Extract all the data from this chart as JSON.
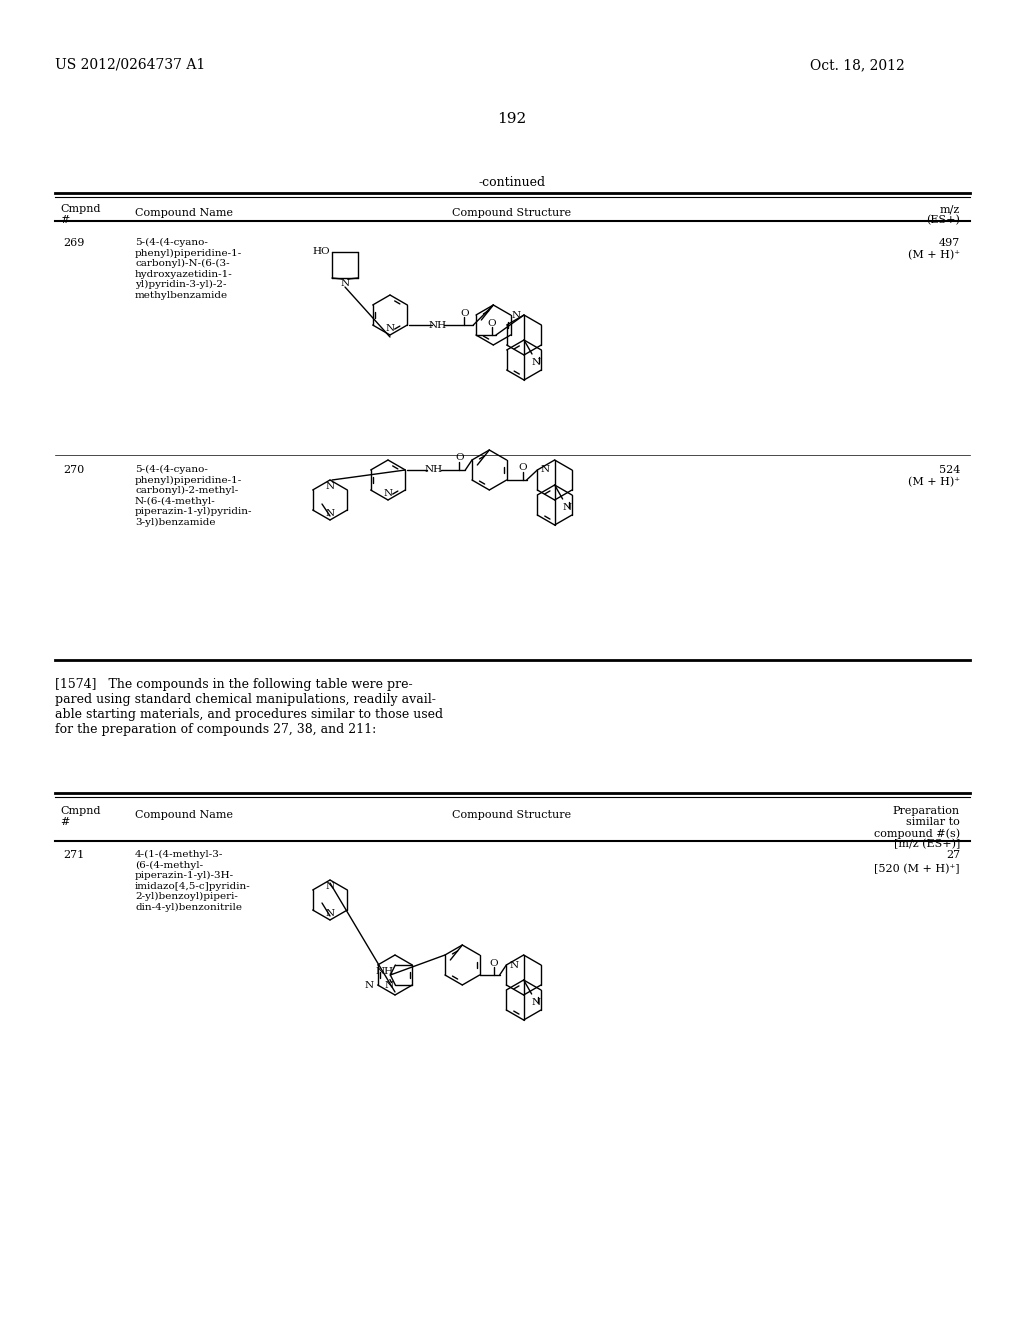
{
  "page_number": "192",
  "patent_number": "US 2012/0264737 A1",
  "patent_date": "Oct. 18, 2012",
  "continued_label": "-continued",
  "row269_cmpnd": "269",
  "row269_name": "5-(4-(4-cyano-\nphenyl)piperidine-1-\ncarbonyl)-N-(6-(3-\nhydroxyazetidin-1-\nyl)pyridin-3-yl)-2-\nmethylbenzamide",
  "row269_mz": "497",
  "row269_mz2": "(M + H)⁺",
  "row270_cmpnd": "270",
  "row270_name": "5-(4-(4-cyano-\nphenyl)piperidine-1-\ncarbonyl)-2-methyl-\nN-(6-(4-methyl-\npiperazin-1-yl)pyridin-\n3-yl)benzamide",
  "row270_mz": "524",
  "row270_mz2": "(M + H)⁺",
  "para1574": "[1574]   The compounds in the following table were pre-\npared using standard chemical manipulations, readily avail-\nable starting materials, and procedures similar to those used\nfor the preparation of compounds 27, 38, and 211:",
  "row271_cmpnd": "271",
  "row271_name": "4-(1-(4-methyl-3-\n(6-(4-methyl-\npiperazin-1-yl)-3H-\nimidazo[4,5-c]pyridin-\n2-yl)benzoyl)piperi-\ndin-4-yl)benzonitrile",
  "row271_prep": "27",
  "row271_prep2": "[520 (M + H)⁺]",
  "bg_color": "#ffffff"
}
